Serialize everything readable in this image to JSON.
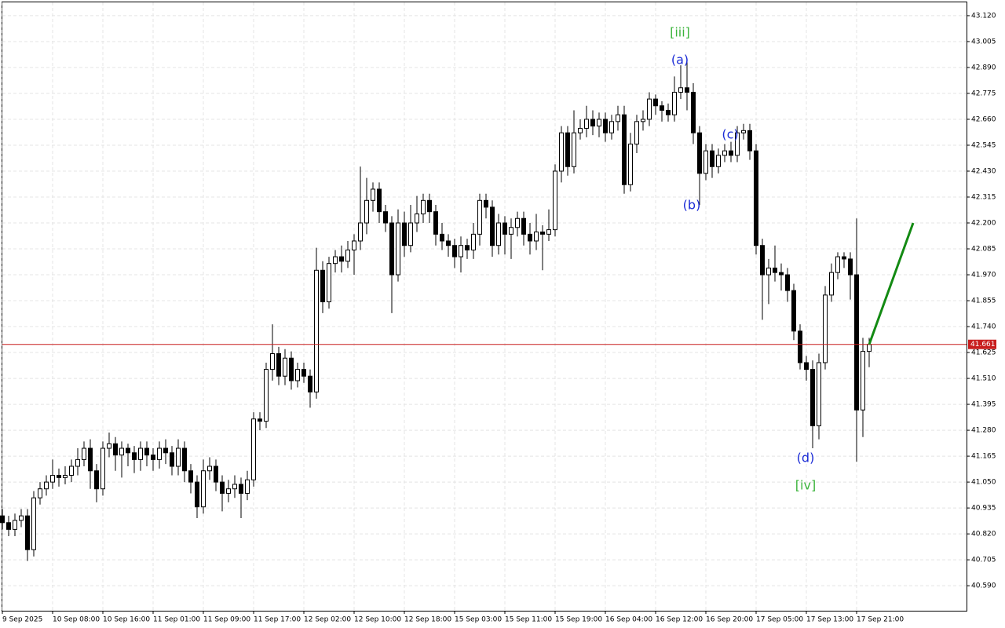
{
  "chart_data": {
    "type": "candlestick",
    "categories": [
      "9 Sep 2025",
      null,
      null,
      null,
      null,
      null,
      null,
      null,
      "10 Sep 08:00",
      null,
      null,
      null,
      null,
      null,
      null,
      null,
      "10 Sep 16:00",
      null,
      null,
      null,
      null,
      null,
      null,
      null,
      "11 Sep 01:00",
      null,
      null,
      null,
      null,
      null,
      null,
      null,
      "11 Sep 09:00",
      null,
      null,
      null,
      null,
      null,
      null,
      null,
      "11 Sep 17:00",
      null,
      null,
      null,
      null,
      null,
      null,
      null,
      "12 Sep 02:00",
      null,
      null,
      null,
      null,
      null,
      null,
      null,
      "12 Sep 10:00",
      null,
      null,
      null,
      null,
      null,
      null,
      null,
      "12 Sep 18:00",
      null,
      null,
      null,
      null,
      null,
      null,
      null,
      "15 Sep 03:00",
      null,
      null,
      null,
      null,
      null,
      null,
      null,
      "15 Sep 11:00",
      null,
      null,
      null,
      null,
      null,
      null,
      null,
      "15 Sep 19:00",
      null,
      null,
      null,
      null,
      null,
      null,
      null,
      "16 Sep 04:00",
      null,
      null,
      null,
      null,
      null,
      null,
      null,
      "16 Sep 12:00",
      null,
      null,
      null,
      null,
      null,
      null,
      null,
      "16 Sep 20:00",
      null,
      null,
      null,
      null,
      null,
      null,
      null,
      "17 Sep 05:00",
      null,
      null,
      null,
      null,
      null,
      null,
      null,
      "17 Sep 13:00",
      null,
      null,
      null,
      null,
      null,
      null,
      null,
      "17 Sep 21:00",
      null,
      null
    ],
    "open": [
      40.9,
      40.87,
      40.84,
      40.88,
      40.9,
      40.75,
      40.98,
      41.02,
      41.05,
      41.08,
      41.07,
      41.08,
      41.12,
      41.15,
      41.2,
      41.1,
      41.02,
      41.2,
      41.22,
      41.17,
      41.2,
      41.18,
      41.15,
      41.2,
      41.17,
      41.15,
      41.2,
      41.18,
      41.12,
      41.2,
      41.1,
      41.05,
      40.94,
      41.1,
      41.12,
      41.05,
      41.0,
      41.02,
      41.04,
      41.0,
      41.06,
      41.33,
      41.32,
      41.55,
      41.62,
      41.52,
      41.6,
      41.5,
      41.55,
      41.52,
      41.45,
      41.99,
      41.85,
      42.02,
      42.05,
      42.03,
      42.08,
      42.12,
      42.2,
      42.3,
      42.35,
      42.25,
      42.2,
      41.97,
      42.2,
      42.1,
      42.2,
      42.24,
      42.3,
      42.25,
      42.15,
      42.12,
      42.1,
      42.05,
      42.1,
      42.08,
      42.15,
      42.3,
      42.27,
      42.1,
      42.2,
      42.15,
      42.18,
      42.22,
      42.15,
      42.12,
      42.16,
      42.15,
      42.17,
      42.43,
      42.6,
      42.45,
      42.6,
      42.62,
      42.66,
      42.63,
      42.66,
      42.6,
      42.65,
      42.68,
      42.37,
      42.55,
      42.65,
      42.66,
      42.75,
      42.72,
      42.7,
      42.68,
      42.78,
      42.8,
      42.78,
      42.6,
      42.42,
      42.52,
      42.45,
      42.5,
      42.52,
      42.5,
      42.6,
      42.61,
      42.52,
      42.1,
      41.97,
      42.0,
      41.98,
      41.97,
      41.9,
      41.72,
      41.58,
      41.55,
      41.3,
      41.58,
      41.88,
      41.98,
      42.05,
      42.04,
      41.97,
      41.37,
      41.63
    ],
    "high": [
      40.93,
      40.9,
      40.91,
      40.93,
      40.93,
      41.01,
      41.05,
      41.08,
      41.15,
      41.11,
      41.12,
      41.15,
      41.2,
      41.23,
      41.24,
      41.13,
      41.23,
      41.27,
      41.25,
      41.23,
      41.22,
      41.21,
      41.23,
      41.23,
      41.2,
      41.23,
      41.24,
      41.21,
      41.24,
      41.23,
      41.13,
      41.08,
      41.15,
      41.16,
      41.15,
      41.08,
      41.06,
      41.08,
      41.07,
      41.1,
      41.36,
      41.36,
      41.58,
      41.75,
      41.65,
      41.64,
      41.63,
      41.58,
      41.58,
      41.55,
      42.09,
      42.03,
      42.05,
      42.08,
      42.1,
      42.12,
      42.15,
      42.45,
      42.4,
      42.38,
      42.38,
      42.28,
      42.23,
      42.26,
      42.25,
      42.28,
      42.32,
      42.33,
      42.33,
      42.28,
      42.2,
      42.15,
      42.13,
      42.14,
      42.13,
      42.2,
      42.33,
      42.33,
      42.3,
      42.24,
      42.23,
      42.22,
      42.25,
      42.25,
      42.2,
      42.24,
      42.19,
      42.26,
      42.46,
      42.63,
      42.63,
      42.7,
      42.66,
      42.72,
      42.7,
      42.69,
      42.69,
      42.68,
      42.72,
      42.72,
      42.6,
      42.68,
      42.7,
      42.78,
      42.77,
      42.74,
      42.73,
      42.85,
      42.9,
      42.93,
      42.82,
      42.63,
      42.55,
      42.55,
      42.53,
      42.55,
      42.56,
      42.63,
      42.64,
      42.64,
      42.55,
      42.13,
      42.04,
      42.1,
      42.02,
      42.0,
      41.93,
      41.75,
      41.61,
      41.59,
      41.62,
      41.92,
      42.02,
      42.07,
      42.07,
      42.07,
      42.22,
      41.69,
      41.69
    ],
    "low": [
      40.84,
      40.81,
      40.81,
      40.85,
      40.7,
      40.72,
      40.95,
      40.99,
      41.02,
      41.03,
      41.04,
      41.05,
      41.08,
      41.12,
      41.02,
      40.96,
      40.99,
      41.16,
      41.1,
      41.07,
      41.12,
      41.09,
      41.1,
      41.12,
      41.1,
      41.11,
      41.13,
      41.08,
      41.08,
      41.05,
      41.0,
      40.89,
      40.91,
      41.06,
      41.01,
      40.92,
      40.96,
      40.98,
      40.89,
      40.97,
      41.03,
      41.28,
      41.29,
      41.5,
      41.48,
      41.48,
      41.46,
      41.47,
      41.49,
      41.38,
      41.42,
      41.8,
      41.82,
      41.98,
      41.98,
      42.0,
      41.97,
      42.08,
      42.15,
      42.25,
      42.2,
      42.16,
      41.8,
      41.94,
      42.05,
      42.07,
      42.16,
      42.2,
      42.2,
      42.1,
      42.08,
      42.05,
      42.0,
      41.98,
      42.04,
      42.04,
      42.1,
      42.22,
      42.05,
      42.06,
      42.06,
      42.04,
      42.14,
      42.1,
      42.06,
      42.08,
      41.99,
      42.12,
      42.14,
      42.38,
      42.41,
      42.42,
      42.57,
      42.58,
      42.59,
      42.58,
      42.56,
      42.57,
      42.61,
      42.33,
      42.34,
      42.51,
      42.61,
      42.63,
      42.68,
      42.65,
      42.65,
      42.65,
      42.75,
      42.7,
      42.55,
      42.28,
      42.39,
      42.4,
      42.42,
      42.47,
      42.47,
      42.47,
      42.57,
      42.48,
      42.06,
      41.77,
      41.84,
      41.94,
      41.9,
      41.85,
      41.68,
      41.55,
      41.5,
      41.2,
      41.24,
      41.55,
      41.85,
      41.95,
      42.0,
      41.86,
      41.14,
      41.25,
      41.56
    ],
    "close": [
      40.87,
      40.84,
      40.88,
      40.9,
      40.75,
      40.98,
      41.02,
      41.05,
      41.08,
      41.07,
      41.08,
      41.12,
      41.15,
      41.2,
      41.1,
      41.02,
      41.2,
      41.22,
      41.17,
      41.2,
      41.18,
      41.15,
      41.2,
      41.17,
      41.15,
      41.2,
      41.18,
      41.12,
      41.2,
      41.1,
      41.05,
      40.94,
      41.1,
      41.12,
      41.05,
      41.0,
      41.02,
      41.04,
      41.0,
      41.06,
      41.33,
      41.32,
      41.55,
      41.62,
      41.52,
      41.6,
      41.5,
      41.55,
      41.52,
      41.45,
      41.99,
      41.85,
      42.02,
      42.05,
      42.03,
      42.08,
      42.12,
      42.2,
      42.3,
      42.35,
      42.25,
      42.2,
      41.97,
      42.2,
      42.1,
      42.2,
      42.24,
      42.3,
      42.25,
      42.15,
      42.12,
      42.1,
      42.05,
      42.1,
      42.08,
      42.15,
      42.3,
      42.27,
      42.1,
      42.2,
      42.15,
      42.18,
      42.22,
      42.15,
      42.12,
      42.16,
      42.15,
      42.17,
      42.43,
      42.6,
      42.45,
      42.6,
      42.62,
      42.66,
      42.63,
      42.66,
      42.6,
      42.65,
      42.68,
      42.37,
      42.55,
      42.65,
      42.66,
      42.75,
      42.72,
      42.7,
      42.68,
      42.78,
      42.8,
      42.78,
      42.6,
      42.42,
      42.52,
      42.45,
      42.5,
      42.52,
      42.5,
      42.6,
      42.61,
      42.52,
      42.1,
      41.97,
      42.0,
      41.98,
      41.97,
      41.9,
      41.72,
      41.58,
      41.55,
      41.3,
      41.58,
      41.88,
      41.98,
      42.05,
      42.04,
      41.97,
      41.37,
      41.63,
      41.661
    ],
    "up_color": "#ffffff",
    "down_color": "#000000",
    "edge_color": "#000000",
    "ylim": [
      40.479,
      43.179
    ],
    "yticks": [
      {
        "value": 43.12,
        "label": "43.120"
      },
      43.005,
      {
        "value": 42.89,
        "label": "42.890"
      },
      42.775,
      {
        "value": 42.66,
        "label": "42.660"
      },
      42.545,
      {
        "value": 42.43,
        "label": "42.430"
      },
      42.315,
      {
        "value": 42.2,
        "label": "42.200"
      },
      42.085,
      {
        "value": 41.97,
        "label": "41.970"
      },
      41.855,
      {
        "value": 41.74,
        "label": "41.740"
      },
      41.625,
      {
        "value": 41.51,
        "label": "41.510"
      },
      41.395,
      {
        "value": 41.28,
        "label": "41.280"
      },
      41.165,
      {
        "value": 41.05,
        "label": "41.050"
      },
      40.935,
      {
        "value": 40.82,
        "label": "40.820"
      },
      40.705,
      {
        "value": 40.59,
        "label": "40.590"
      }
    ],
    "grid": true,
    "last_price": 41.661,
    "last_price_color": "#c81e1e",
    "projection": {
      "color": "#138a13",
      "values": [
        41.661,
        42.2
      ]
    },
    "annotations": [
      {
        "text": "[iii]",
        "color": "#3cb43c"
      },
      {
        "text": "(a)",
        "color": "#1a2bd6"
      },
      {
        "text": "(b)",
        "color": "#1a2bd6"
      },
      {
        "text": "(c)",
        "color": "#1a2bd6"
      },
      {
        "text": "(d)",
        "color": "#1a2bd6"
      },
      {
        "text": "[iv]",
        "color": "#3cb43c"
      }
    ]
  }
}
